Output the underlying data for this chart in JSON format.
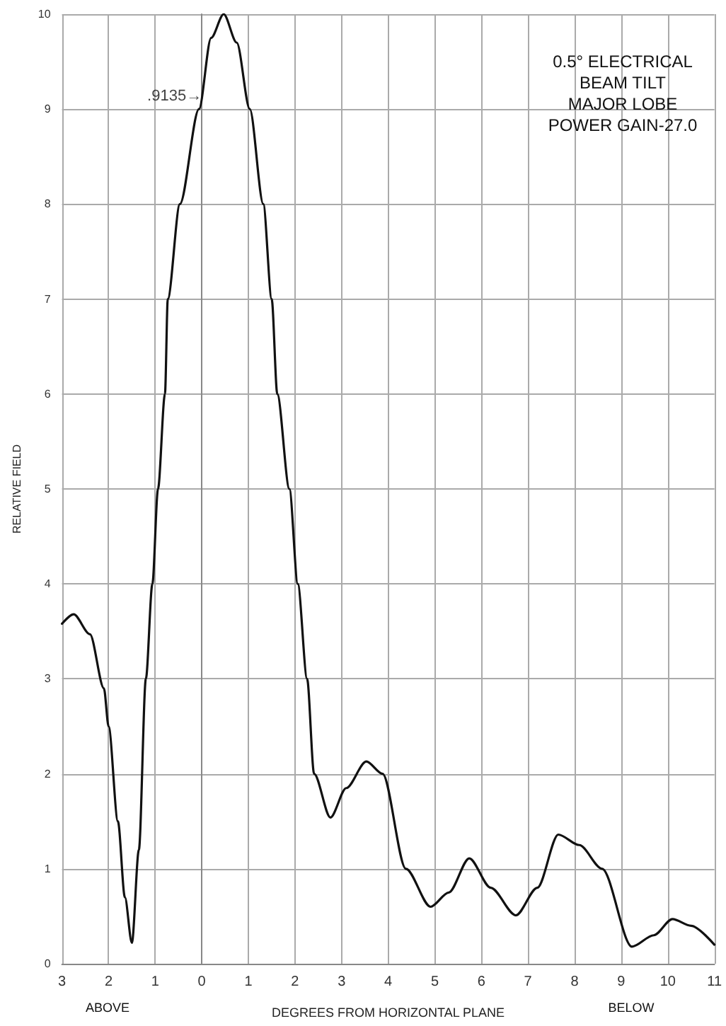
{
  "chart_data": {
    "type": "line",
    "xlabel": "DEGREES FROM HORIZONTAL PLANE",
    "ylabel": "RELATIVE FIELD",
    "annotations": [
      "0.5° ELECTRICAL\nBEAM TILT\nMAJOR LOBE\nPOWER GAIN-27.0",
      "ABOVE",
      "BELOW",
      {
        "text": ".9135→",
        "x": 0,
        "y": 9.135
      }
    ],
    "xlim": [
      -3,
      11
    ],
    "xticks": [
      {
        "value": -3,
        "label": "3"
      },
      {
        "value": -2,
        "label": "2"
      },
      {
        "value": -1,
        "label": "1"
      },
      0,
      1,
      2,
      3,
      4,
      5,
      6,
      7,
      8,
      9,
      10,
      11
    ],
    "ylim": [
      0,
      10
    ],
    "yticks": [
      0,
      1,
      2,
      3,
      4,
      5,
      6,
      7,
      8,
      9,
      10
    ],
    "grid": true,
    "marker": "none",
    "line_style": "solid",
    "series": [
      {
        "color": "#111111",
        "x": [
          -3,
          -2.75,
          -2.4,
          -2.1,
          -2,
          -1.8,
          -1.65,
          -1.5,
          -1.35,
          -1.2,
          -1.06,
          -0.94,
          -0.79,
          -0.73,
          -0.47,
          -0.06,
          0.2,
          0.47,
          0.75,
          1.03,
          1.32,
          1.5,
          1.62,
          1.88,
          2.06,
          2.26,
          2.41,
          2.76,
          3.1,
          3.53,
          3.88,
          4.38,
          4.91,
          5.3,
          5.74,
          6.2,
          6.74,
          7.2,
          7.65,
          8.1,
          8.59,
          9.23,
          9.7,
          10.1,
          10.5,
          11
        ],
        "values": [
          3.58,
          3.68,
          3.47,
          2.9,
          2.5,
          1.5,
          0.7,
          0.22,
          1.2,
          3,
          4,
          5,
          6,
          7,
          8,
          9,
          9.75,
          10,
          9.7,
          9,
          8,
          7,
          6,
          5,
          4,
          3,
          2,
          1.54,
          1.85,
          2.13,
          2,
          1,
          0.6,
          0.75,
          1.11,
          0.8,
          0.51,
          0.8,
          1.36,
          1.25,
          1,
          0.18,
          0.3,
          0.47,
          0.4,
          0.2
        ]
      }
    ]
  }
}
